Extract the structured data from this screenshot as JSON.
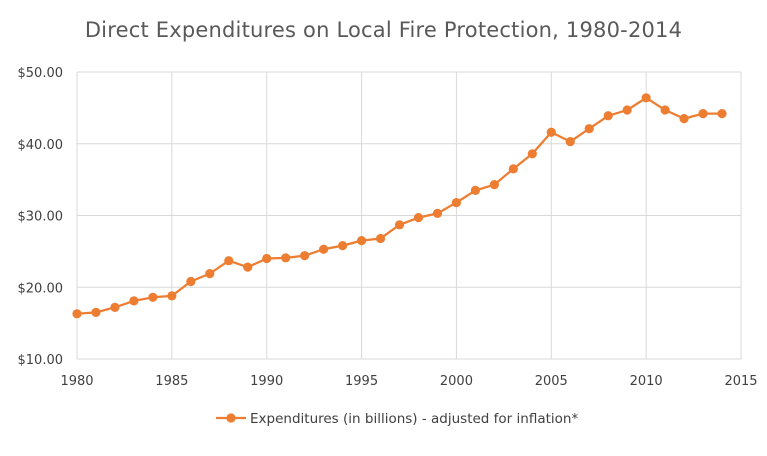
{
  "chart_data": {
    "type": "line",
    "title": "Direct Expenditures on Local Fire Protection, 1980-2014",
    "xlabel": "",
    "ylabel": "",
    "x_ticks": [
      "1980",
      "1985",
      "1990",
      "1995",
      "2000",
      "2005",
      "2010",
      "2015"
    ],
    "y_ticks": [
      "$10.00",
      "$20.00",
      "$30.00",
      "$40.00",
      "$50.00"
    ],
    "xlim": [
      1980,
      2015
    ],
    "ylim": [
      10,
      50
    ],
    "grid": true,
    "legend_position": "bottom",
    "series": [
      {
        "name": "Expenditures (in billions) - adjusted for inflation*",
        "color": "#ED7D31",
        "x": [
          1980,
          1981,
          1982,
          1983,
          1984,
          1985,
          1986,
          1987,
          1988,
          1989,
          1990,
          1991,
          1992,
          1993,
          1994,
          1995,
          1996,
          1997,
          1998,
          1999,
          2000,
          2001,
          2002,
          2003,
          2004,
          2005,
          2006,
          2007,
          2008,
          2009,
          2010,
          2011,
          2012,
          2013,
          2014
        ],
        "values": [
          16.3,
          16.5,
          17.2,
          18.1,
          18.6,
          18.8,
          20.8,
          21.9,
          23.7,
          22.8,
          24.0,
          24.1,
          24.4,
          25.3,
          25.8,
          26.5,
          26.8,
          28.7,
          29.7,
          30.3,
          31.8,
          33.5,
          34.3,
          36.5,
          38.6,
          41.6,
          40.3,
          42.1,
          43.9,
          44.7,
          46.4,
          44.7,
          43.5,
          44.2,
          44.2
        ]
      }
    ]
  }
}
